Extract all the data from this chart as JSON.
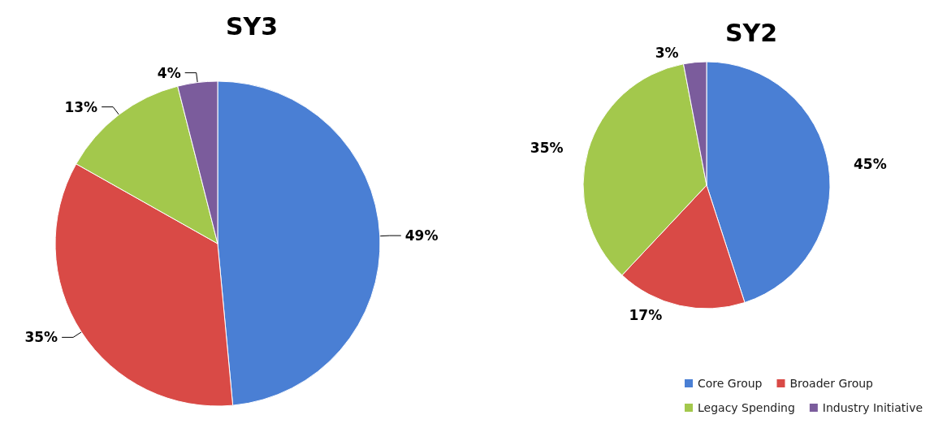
{
  "chart_data": [
    {
      "type": "pie",
      "title": "SY3",
      "categories": [
        null,
        null,
        null,
        null
      ],
      "values": [
        49,
        35,
        13,
        4
      ],
      "value_labels": [
        "49%",
        "35%",
        "13%",
        "4%"
      ],
      "colors": [
        "#4a7fd4",
        "#d94a46",
        "#a3c84c",
        "#7b5c9c"
      ],
      "legend": false
    },
    {
      "type": "pie",
      "title": "SY2",
      "categories": [
        "Core Group",
        "Broader Group",
        "Legacy Spending",
        "Industry Initiative"
      ],
      "values": [
        45,
        17,
        35,
        3
      ],
      "value_labels": [
        "45%",
        "17%",
        "35%",
        "3%"
      ],
      "colors": [
        "#4a7fd4",
        "#d94a46",
        "#a3c84c",
        "#7b5c9c"
      ],
      "legend": "bottom right"
    }
  ]
}
